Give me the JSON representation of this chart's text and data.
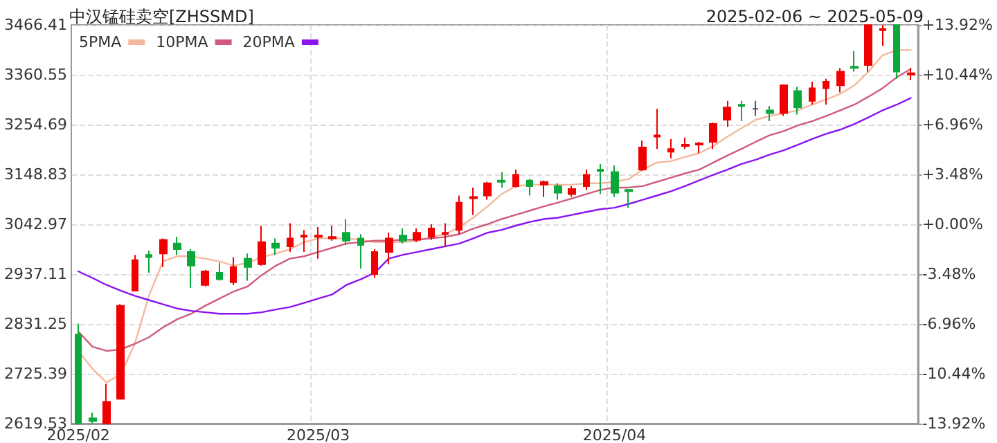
{
  "chart_data": {
    "type": "candlestick",
    "title": "中汉锰硅卖空[ZHSSMD]",
    "subtitle": "2025-02-06 ~ 2025-05-09",
    "categories": [
      "2025/02",
      null,
      null,
      null,
      null,
      null,
      null,
      null,
      null,
      null,
      null,
      null,
      null,
      null,
      null,
      null,
      null,
      "2025/03",
      null,
      null,
      null,
      null,
      null,
      null,
      null,
      null,
      null,
      null,
      null,
      null,
      null,
      null,
      null,
      null,
      null,
      null,
      null,
      null,
      "2025/04",
      null,
      null,
      null,
      null,
      null,
      null,
      null,
      null,
      null,
      null,
      null,
      null,
      null,
      null,
      null,
      null,
      null,
      null,
      null,
      null,
      null
    ],
    "series": [
      {
        "ohlc": [
          [
            2809,
            2832,
            2620,
            2620
          ],
          [
            2631,
            2643,
            2620,
            2625
          ],
          [
            2620,
            2704,
            2620,
            2666
          ],
          [
            2672,
            2873,
            2672,
            2870
          ],
          [
            2902,
            2978,
            2902,
            2967
          ],
          [
            2978,
            2987,
            2940,
            2973
          ],
          [
            2981,
            3013,
            2952,
            3010
          ],
          [
            3002,
            3016,
            2978,
            2990
          ],
          [
            2984,
            2990,
            2908,
            2955
          ],
          [
            2914,
            2946,
            2911,
            2943
          ],
          [
            2940,
            2961,
            2923,
            2926
          ],
          [
            2920,
            2973,
            2914,
            2952
          ],
          [
            2970,
            2981,
            2923,
            2952
          ],
          [
            2958,
            3040,
            2955,
            3005
          ],
          [
            3002,
            3013,
            2978,
            2993
          ],
          [
            2996,
            3045,
            2984,
            3013
          ],
          [
            3016,
            3031,
            2984,
            3019
          ],
          [
            3016,
            3037,
            2970,
            3019
          ],
          [
            3013,
            3040,
            3008,
            3016
          ],
          [
            3025,
            3054,
            2999,
            3008
          ],
          [
            3013,
            3022,
            2949,
            2999
          ],
          [
            2937,
            2990,
            2929,
            2984
          ],
          [
            2984,
            3025,
            2958,
            3013
          ],
          [
            3019,
            3034,
            3002,
            3008
          ],
          [
            3010,
            3034,
            3005,
            3025
          ],
          [
            3016,
            3043,
            3010,
            3034
          ],
          [
            3022,
            3045,
            2996,
            3025
          ],
          [
            3031,
            3104,
            3022,
            3089
          ],
          [
            3098,
            3121,
            3063,
            3101
          ],
          [
            3104,
            3133,
            3095,
            3130
          ],
          [
            3136,
            3154,
            3121,
            3133
          ],
          [
            3124,
            3159,
            3121,
            3148
          ],
          [
            3136,
            3139,
            3104,
            3124
          ],
          [
            3127,
            3136,
            3101,
            3133
          ],
          [
            3124,
            3130,
            3095,
            3110
          ],
          [
            3107,
            3124,
            3101,
            3118
          ],
          [
            3124,
            3159,
            3116,
            3148
          ],
          [
            3159,
            3171,
            3107,
            3156
          ],
          [
            3154,
            3168,
            3101,
            3110
          ],
          [
            3116,
            3116,
            3078,
            3113
          ],
          [
            3159,
            3221,
            3156,
            3206
          ],
          [
            3229,
            3288,
            3203,
            3232
          ],
          [
            3197,
            3224,
            3183,
            3203
          ],
          [
            3209,
            3227,
            3203,
            3212
          ],
          [
            3212,
            3218,
            3194,
            3215
          ],
          [
            3218,
            3259,
            3203,
            3256
          ],
          [
            3265,
            3305,
            3250,
            3291
          ],
          [
            3297,
            3305,
            3262,
            3294
          ],
          [
            3288,
            3305,
            3273,
            3288
          ],
          [
            3285,
            3294,
            3262,
            3279
          ],
          [
            3279,
            3340,
            3273,
            3338
          ],
          [
            3326,
            3335,
            3276,
            3291
          ],
          [
            3305,
            3346,
            3297,
            3332
          ],
          [
            3332,
            3352,
            3297,
            3346
          ],
          [
            3338,
            3375,
            3323,
            3367
          ],
          [
            3378,
            3411,
            3367,
            3375
          ],
          [
            3381,
            3466,
            3367,
            3466
          ],
          [
            3455,
            3466,
            3422,
            3458
          ],
          [
            3466,
            3466,
            3352,
            3367
          ],
          [
            3361,
            3375,
            3349,
            3364
          ]
        ],
        "colors": [
          "#0ca83c",
          "#0ca83c",
          "#f00000",
          "#f00000",
          "#f00000",
          "#0ca83c",
          "#f00000",
          "#0ca83c",
          "#0ca83c",
          "#f00000",
          "#0ca83c",
          "#f00000",
          "#0ca83c",
          "#f00000",
          "#0ca83c",
          "#f00000",
          "#f00000",
          "#f00000",
          "#f00000",
          "#0ca83c",
          "#0ca83c",
          "#f00000",
          "#f00000",
          "#0ca83c",
          "#f00000",
          "#f00000",
          "#f00000",
          "#f00000",
          "#f00000",
          "#f00000",
          "#0ca83c",
          "#f00000",
          "#0ca83c",
          "#f00000",
          "#0ca83c",
          "#f00000",
          "#f00000",
          "#0ca83c",
          "#0ca83c",
          "#0ca83c",
          "#f00000",
          "#f00000",
          "#f00000",
          "#f00000",
          "#f00000",
          "#f00000",
          "#f00000",
          "#0ca83c",
          "#555555",
          "#0ca83c",
          "#f00000",
          "#0ca83c",
          "#f00000",
          "#f00000",
          "#f00000",
          "#0ca83c",
          "#f00000",
          "#f00000",
          "#0ca83c",
          "#f00000"
        ]
      },
      {
        "type": "line",
        "name": "5PMA",
        "color": "#f4b89c",
        "values": [
          2774,
          2736,
          2707,
          2724,
          2789,
          2891,
          2964,
          2975,
          2975,
          2970,
          2964,
          2955,
          2961,
          2973,
          2981,
          2990,
          3005,
          3013,
          3013,
          3013,
          3010,
          3005,
          3005,
          3005,
          3008,
          3016,
          3022,
          3037,
          3057,
          3081,
          3107,
          3124,
          3127,
          3127,
          3127,
          3127,
          3130,
          3130,
          3133,
          3139,
          3159,
          3174,
          3177,
          3186,
          3194,
          3209,
          3229,
          3247,
          3265,
          3273,
          3279,
          3285,
          3297,
          3308,
          3320,
          3338,
          3367,
          3402,
          3413,
          3413
        ]
      },
      {
        "type": "line",
        "name": "10PMA",
        "color": "#d05a7c",
        "values": [
          2815,
          2783,
          2774,
          2777,
          2789,
          2803,
          2824,
          2841,
          2853,
          2870,
          2885,
          2900,
          2911,
          2935,
          2955,
          2970,
          2975,
          2984,
          2993,
          3002,
          3005,
          3008,
          3008,
          3010,
          3010,
          3013,
          3016,
          3022,
          3034,
          3043,
          3054,
          3063,
          3072,
          3081,
          3089,
          3098,
          3107,
          3116,
          3121,
          3121,
          3124,
          3133,
          3142,
          3151,
          3159,
          3174,
          3189,
          3203,
          3218,
          3232,
          3241,
          3253,
          3262,
          3273,
          3285,
          3297,
          3314,
          3332,
          3355,
          3373
        ]
      },
      {
        "type": "line",
        "name": "20PMA",
        "color": "#8a14f0",
        "values": [
          2943,
          2929,
          2914,
          2902,
          2891,
          2882,
          2873,
          2864,
          2859,
          2856,
          2853,
          2853,
          2853,
          2856,
          2862,
          2867,
          2876,
          2885,
          2894,
          2914,
          2926,
          2940,
          2970,
          2978,
          2984,
          2990,
          2996,
          3002,
          3013,
          3025,
          3031,
          3040,
          3048,
          3054,
          3057,
          3063,
          3069,
          3075,
          3078,
          3086,
          3095,
          3104,
          3113,
          3124,
          3136,
          3148,
          3159,
          3171,
          3180,
          3191,
          3200,
          3212,
          3224,
          3235,
          3244,
          3256,
          3270,
          3285,
          3297,
          3311
        ]
      }
    ],
    "ylim": [
      2619.53,
      3466.41
    ],
    "yticks": [
      2619.53,
      2725.39,
      2831.25,
      2937.11,
      3042.97,
      3148.83,
      3254.69,
      3360.55,
      3466.41
    ],
    "y2lim": [
      -13.92,
      13.92
    ],
    "y2ticks": [
      {
        "value": -13.92,
        "label": "-13.92%"
      },
      {
        "value": -10.44,
        "label": "-10.44%"
      },
      {
        "value": -6.96,
        "label": "-6.96%"
      },
      {
        "value": -3.48,
        "label": "-3.48%"
      },
      {
        "value": 0,
        "label": "+0.00%"
      },
      {
        "value": 3.48,
        "label": "+3.48%"
      },
      {
        "value": 6.96,
        "label": "+6.96%"
      },
      {
        "value": 10.44,
        "label": "+10.44%"
      },
      {
        "value": 13.92,
        "label": "+13.92%"
      }
    ],
    "grid": true,
    "legend": "top left",
    "marker": "none",
    "line_style": "solid"
  }
}
